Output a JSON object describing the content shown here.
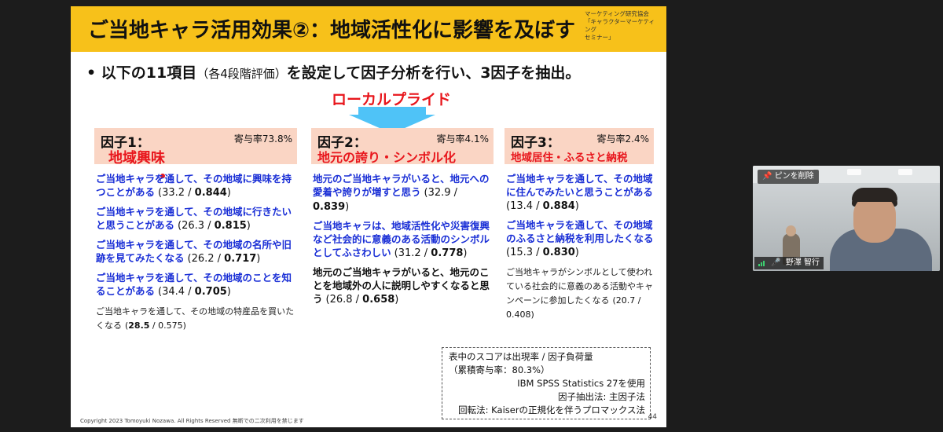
{
  "slide": {
    "title": "ご当地キャラ活用効果②：地域活性化に影響を及ぼす",
    "org_lines": [
      "マーケティング研究協会",
      "「キャラクターマーケティング",
      "セミナー」"
    ],
    "bullet_mark": "•",
    "bullet_main_1": "以下の11項目",
    "bullet_small": "（各4段階評価）",
    "bullet_main_2": "を設定して因子分析を行い、3因子を抽出。",
    "local_pride": "ローカルプライド",
    "factors": [
      {
        "name": "因子1：",
        "rate": "寄与率73.8%",
        "label": "地域興味",
        "items": [
          {
            "q": "ご当地キャラを通して、その地域に興味を持つことがある",
            "v_open": "(33.2 / ",
            "v_bold": "0.844",
            "v_close": ")"
          },
          {
            "q": "ご当地キャラを通して、その地域に行きたいと思うことがある",
            "v_open": "(26.3 / ",
            "v_bold": "0.815",
            "v_close": ")"
          },
          {
            "q": "ご当地キャラを通して、その地域の名所や旧跡を見てみたくなる",
            "v_open": "(26.2 / ",
            "v_bold": "0.717",
            "v_close": ")"
          },
          {
            "q": "ご当地キャラを通して、その地域のことを知ることがある",
            "v_open": "(34.4 / ",
            "v_bold": "0.705",
            "v_close": ")"
          },
          {
            "q": "ご当地キャラを通して、その地域の特産品を買いたくなる",
            "v_open": "(",
            "v_bold": "28.5",
            "v_close": " / 0.575)"
          }
        ]
      },
      {
        "name": "因子2：",
        "rate": "寄与率4.1%",
        "label": "地元の誇り・シンボル化",
        "items": [
          {
            "q": "地元のご当地キャラがいると、地元への愛着や誇りが増すと思う",
            "v_open": "(32.9 / ",
            "v_bold": "0.839",
            "v_close": ")"
          },
          {
            "q": "ご当地キャラは、地域活性化や災害復興など社会的に意義のある活動のシンボルとしてふさわしい",
            "v_open": "(31.2 / ",
            "v_bold": "0.778",
            "v_close": ")"
          },
          {
            "q": "地元のご当地キャラがいると、地元のことを地域外の人に説明しやすくなると思う",
            "v_open": "(26.8 / ",
            "v_bold": "0.658",
            "v_close": ")"
          }
        ]
      },
      {
        "name": "因子3：",
        "rate": "寄与率2.4%",
        "label": "地域居住・ふるさと納税",
        "items": [
          {
            "q": "ご当地キャラを通して、その地域に住んでみたいと思うことがある",
            "v_open": "(13.4 / ",
            "v_bold": "0.884",
            "v_close": ")"
          },
          {
            "q": "ご当地キャラを通して、その地域のふるさと納税を利用したくなる",
            "v_open": "(15.3 / ",
            "v_bold": "0.830",
            "v_close": ")"
          },
          {
            "q": "ご当地キャラがシンボルとして使われている社会的に意義のある活動やキャンペーンに参加したくなる",
            "v_open": "(20.7 / 0.408)",
            "v_bold": "",
            "v_close": ""
          }
        ]
      }
    ],
    "notes": [
      "表中のスコアは出現率 / 因子負荷量",
      "（累積寄与率：80.3%）",
      "IBM SPSS Statistics 27を使用",
      "因子抽出法: 主因子法",
      "回転法: Kaiserの正規化を伴うプロマックス法"
    ],
    "copyright": "Copyright 2023 Tomoyuki Nozawa. All Rights Reserved 無断での二次利用を禁じます",
    "page_number": "44"
  },
  "video": {
    "pin_label": "ピンを削除",
    "participant_name": "野澤 智行"
  }
}
